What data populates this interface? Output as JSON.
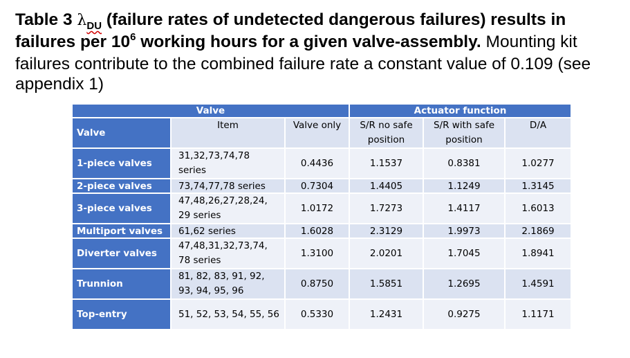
{
  "title": {
    "part1": "Table 3 ",
    "symbol": "λ",
    "subscript": "DU",
    "part2": " (failure rates of undetected dangerous failures) results in failures per 10",
    "superscript": "6",
    "part3": " working hours for a given valve-assembly.",
    "note": " Mounting kit failures contribute to the combined failure rate a constant value of 0.109 (see appendix 1)"
  },
  "table": {
    "group_headers": {
      "valve": "Valve",
      "actuator": "Actuator function"
    },
    "columns": [
      "Valve",
      "Item",
      "Valve only",
      "S/R no safe position",
      "S/R with safe position",
      "D/A"
    ],
    "rows": [
      {
        "valve": "1-piece valves",
        "item": "31,32,73,74,78 series",
        "valve_only": "0.4436",
        "sr_no_safe": "1.1537",
        "sr_safe": "0.8381",
        "da": "1.0277"
      },
      {
        "valve": "2-piece valves",
        "item": "73,74,77,78 series",
        "valve_only": "0.7304",
        "sr_no_safe": "1.4405",
        "sr_safe": "1.1249",
        "da": "1.3145"
      },
      {
        "valve": "3-piece valves",
        "item": "47,48,26,27,28,24, 29 series",
        "valve_only": "1.0172",
        "sr_no_safe": "1.7273",
        "sr_safe": "1.4117",
        "da": "1.6013"
      },
      {
        "valve": "Multiport valves",
        "item": "61,62 series",
        "valve_only": "1.6028",
        "sr_no_safe": "2.3129",
        "sr_safe": "1.9973",
        "da": "2.1869"
      },
      {
        "valve": "Diverter valves",
        "item": "47,48,31,32,73,74, 78 series",
        "valve_only": "1.3100",
        "sr_no_safe": "2.0201",
        "sr_safe": "1.7045",
        "da": "1.8941"
      },
      {
        "valve": "Trunnion",
        "item": "81, 82, 83, 91, 92, 93, 94, 95, 96",
        "valve_only": "0.8750",
        "sr_no_safe": "1.5851",
        "sr_safe": "1.2695",
        "da": "1.4591"
      },
      {
        "valve": "Top-entry",
        "item": "51, 52, 53, 54, 55, 56",
        "valve_only": "0.5330",
        "sr_no_safe": "1.2431",
        "sr_safe": "0.9275",
        "da": "1.1171"
      }
    ]
  }
}
